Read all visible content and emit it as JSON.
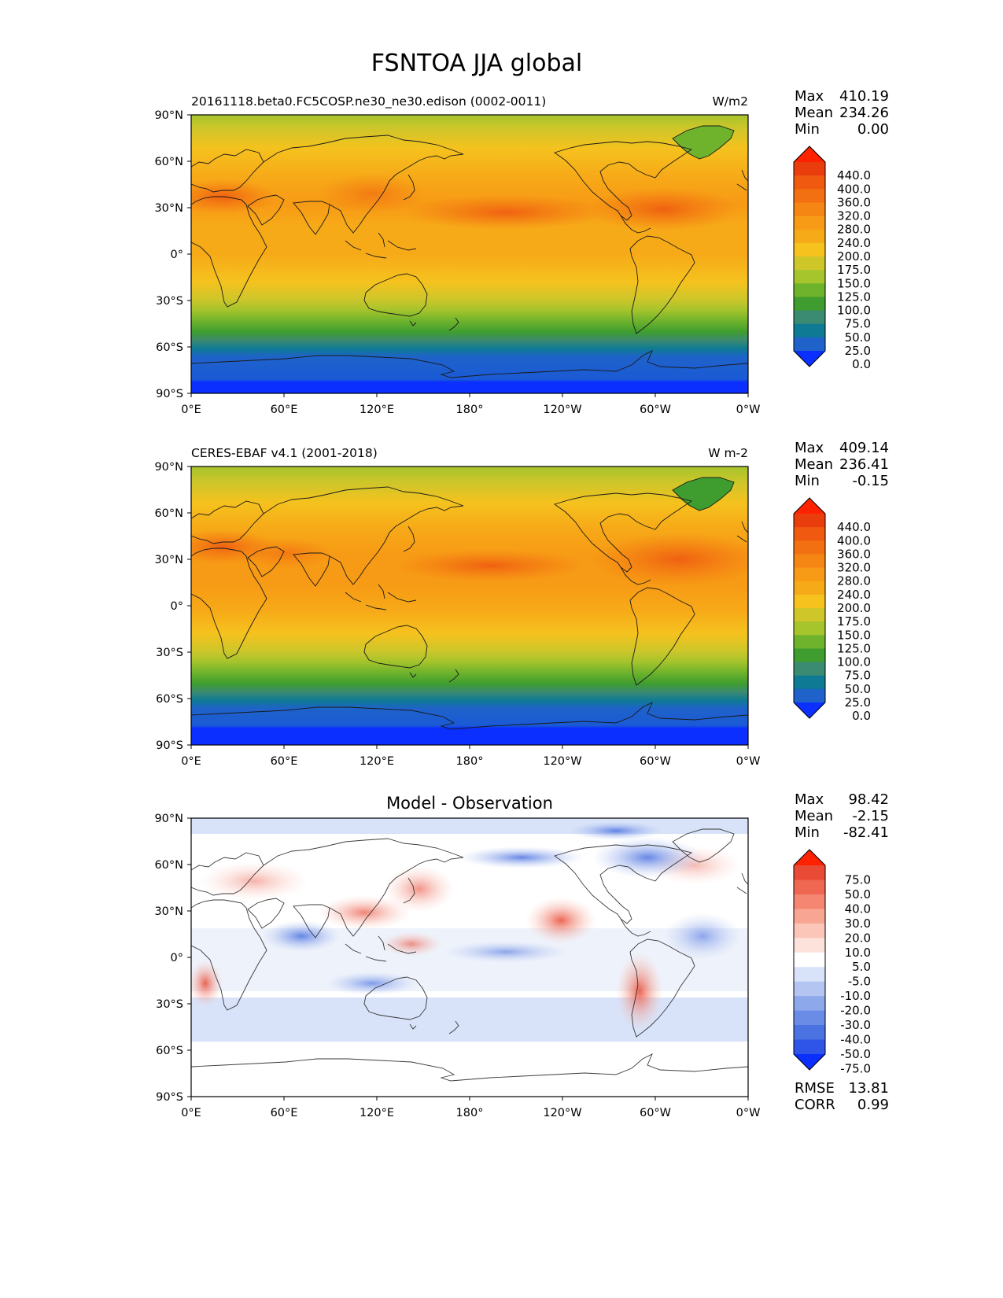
{
  "figure": {
    "title": "FSNTOA JJA global"
  },
  "axes": {
    "lat_ticks": [
      "90°N",
      "60°N",
      "30°N",
      "0°",
      "30°S",
      "60°S",
      "90°S"
    ],
    "lon_ticks": [
      "0°E",
      "60°E",
      "120°E",
      "180°",
      "120°W",
      "60°W",
      "0°W"
    ]
  },
  "stats_labels": {
    "max": "Max",
    "mean": "Mean",
    "min": "Min",
    "rmse": "RMSE",
    "corr": "CORR"
  },
  "panels": [
    {
      "title_left": "20161118.beta0.FC5COSP.ne30_ne30.edison (0002-0011)",
      "title_center": "",
      "units": "W/m2",
      "stats": {
        "max": "410.19",
        "mean": "234.26",
        "min": "0.00"
      },
      "colorbar": {
        "labels": [
          "440.0",
          "400.0",
          "360.0",
          "320.0",
          "280.0",
          "240.0",
          "200.0",
          "175.0",
          "150.0",
          "125.0",
          "100.0",
          "75.0",
          "50.0",
          "25.0",
          "0.0"
        ],
        "colors": [
          "#0a2fff",
          "#1f62c9",
          "#0f7a94",
          "#3b8a72",
          "#3f9d2f",
          "#6fb32c",
          "#a6c42c",
          "#cfc62a",
          "#f5c21e",
          "#f7aa18",
          "#f79a15",
          "#f58613",
          "#f27012",
          "#ef5a10",
          "#ea3d0e",
          "#ff2200"
        ]
      }
    },
    {
      "title_left": "CERES-EBAF v4.1 (2001-2018)",
      "title_center": "",
      "units": "W m-2",
      "stats": {
        "max": "409.14",
        "mean": "236.41",
        "min": "-0.15"
      },
      "colorbar": {
        "labels": [
          "440.0",
          "400.0",
          "360.0",
          "320.0",
          "280.0",
          "240.0",
          "200.0",
          "175.0",
          "150.0",
          "125.0",
          "100.0",
          "75.0",
          "50.0",
          "25.0",
          "0.0"
        ],
        "colors": [
          "#0a2fff",
          "#1f62c9",
          "#0f7a94",
          "#3b8a72",
          "#3f9d2f",
          "#6fb32c",
          "#a6c42c",
          "#cfc62a",
          "#f5c21e",
          "#f7aa18",
          "#f79a15",
          "#f58613",
          "#f27012",
          "#ef5a10",
          "#ea3d0e",
          "#ff2200"
        ]
      }
    },
    {
      "title_left": "",
      "title_center": "Model - Observation",
      "units": "",
      "stats": {
        "max": "98.42",
        "mean": "-2.15",
        "min": "-82.41"
      },
      "extra_stats": {
        "rmse": "13.81",
        "corr": "0.99"
      },
      "colorbar": {
        "labels": [
          "75.0",
          "50.0",
          "40.0",
          "30.0",
          "20.0",
          "10.0",
          "5.0",
          "-5.0",
          "-10.0",
          "-20.0",
          "-30.0",
          "-40.0",
          "-50.0",
          "-75.0"
        ],
        "colors": [
          "#0a2fff",
          "#2e55e8",
          "#4a72e0",
          "#6a8ce6",
          "#8ea8ec",
          "#b4c5f2",
          "#d8e2f8",
          "#ffffff",
          "#fde2dc",
          "#fbc5b8",
          "#f8a594",
          "#f48672",
          "#ef6651",
          "#e94a36",
          "#ff2200"
        ]
      }
    }
  ],
  "map_fields": {
    "full_band_colors": [
      "#0a2fff",
      "#1a5ad6",
      "#0f7a94",
      "#3b8a72",
      "#3f9d2f",
      "#6fb32c",
      "#a6c42c",
      "#cfc62a",
      "#f5c21e",
      "#f7aa18",
      "#f79a15",
      "#f58613",
      "#f27012"
    ],
    "greenland_color": "#6fb32c",
    "ocean_max_color": "#f27012",
    "land_line_color": "#1a1a1a",
    "diff_red_colors": [
      "#fbc5b8",
      "#f8a594",
      "#ef6651",
      "#e94a36"
    ],
    "diff_blue_colors": [
      "#d8e2f8",
      "#b4c5f2",
      "#8ea8ec",
      "#4a72e0"
    ]
  }
}
